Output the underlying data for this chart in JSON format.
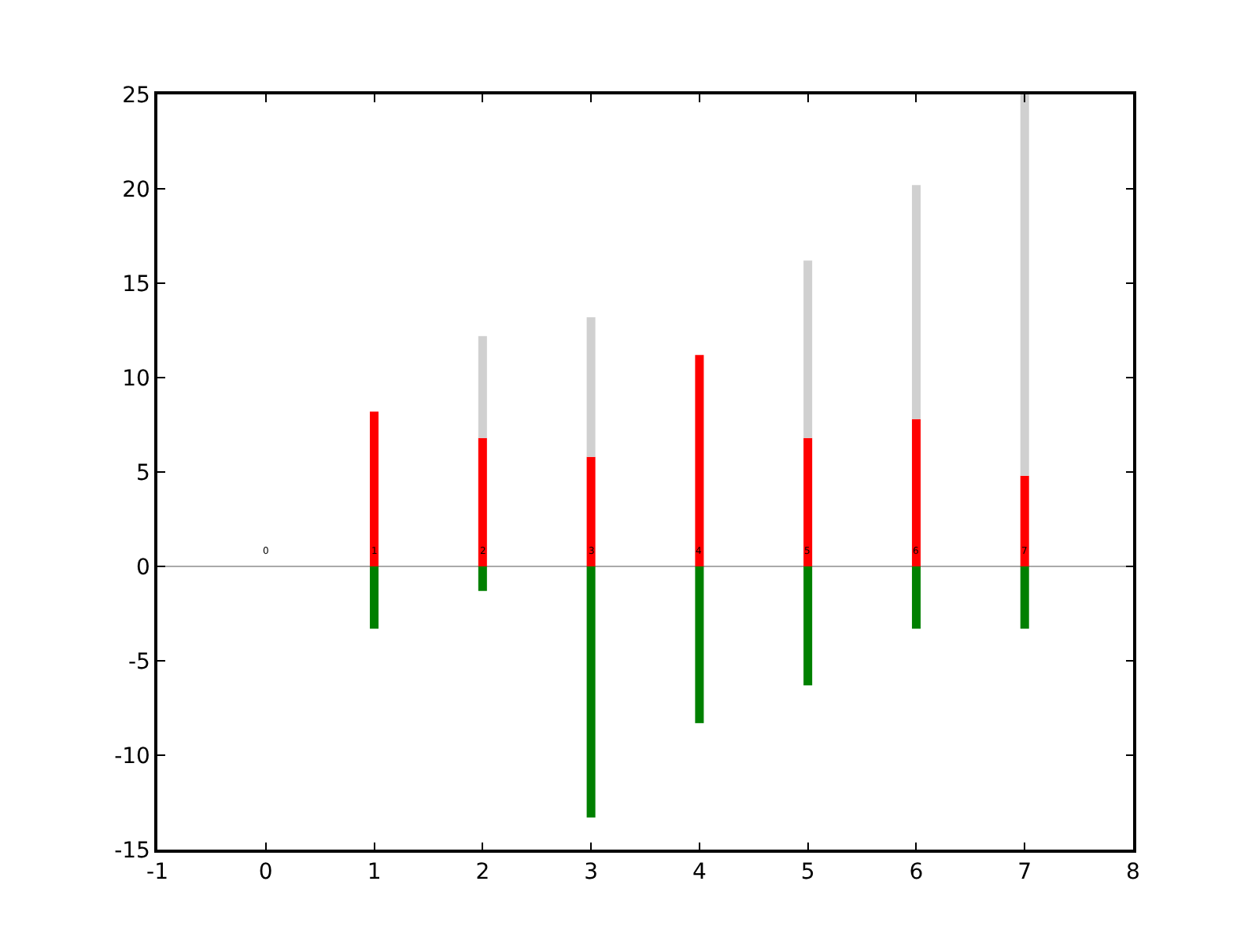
{
  "chart_data": {
    "type": "bar",
    "stacked": true,
    "x": [
      0,
      1,
      2,
      3,
      4,
      5,
      6,
      7
    ],
    "series": [
      {
        "color": "#008000",
        "values": [
          0,
          -3.3,
          -1.3,
          -13.3,
          -8.3,
          -6.3,
          -3.3,
          -3.3
        ]
      },
      {
        "color": "#ff0000",
        "values": [
          0,
          8.2,
          6.8,
          5.8,
          11.2,
          6.8,
          7.8,
          4.8
        ]
      },
      {
        "color": "#d0d0d0",
        "values": [
          0,
          0,
          5.4,
          7.4,
          0,
          9.4,
          12.4,
          20.2
        ]
      }
    ],
    "xlim": [
      -1,
      8
    ],
    "xticks": [
      -1,
      0,
      1,
      2,
      3,
      4,
      5,
      6,
      7,
      8
    ],
    "ylim": [
      -15,
      25
    ],
    "yticks": [
      -15,
      -10,
      -5,
      0,
      5,
      10,
      15,
      20,
      25
    ],
    "ref_lines": [
      {
        "axis": "y",
        "value": 0,
        "color": "#aaaaaa"
      }
    ],
    "annotations": [
      {
        "text": "0",
        "x": 0,
        "y": 0.3
      },
      {
        "text": "1",
        "x": 1,
        "y": 0.3
      },
      {
        "text": "2",
        "x": 2,
        "y": 0.3
      },
      {
        "text": "3",
        "x": 3,
        "y": 0.3
      },
      {
        "text": "4",
        "x": 4,
        "y": 0.3
      },
      {
        "text": "5",
        "x": 5,
        "y": 0.3
      },
      {
        "text": "6",
        "x": 6,
        "y": 0.3
      },
      {
        "text": "7",
        "x": 7,
        "y": 0.3
      }
    ]
  }
}
